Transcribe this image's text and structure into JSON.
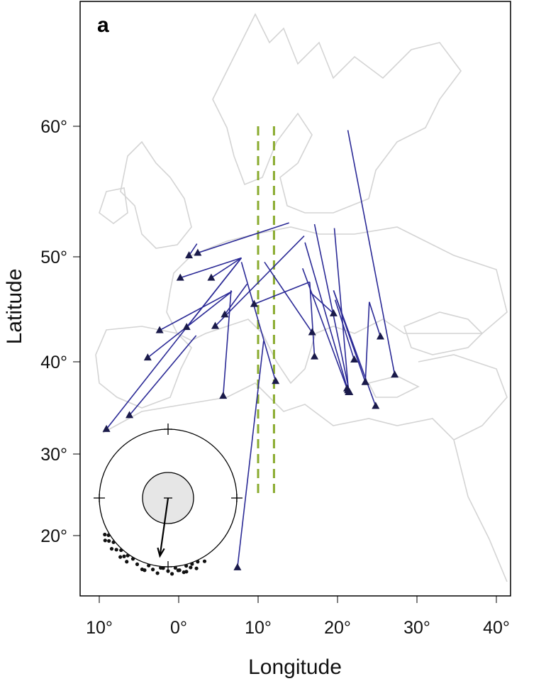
{
  "panel_label": "a",
  "chart_data": {
    "type": "map-tracks",
    "xlabel": "Longitude",
    "ylabel": "Latitude",
    "x_ticks": [
      -10,
      0,
      10,
      20,
      30,
      40
    ],
    "x_tick_labels": [
      "10°",
      "0°",
      "10°",
      "20°",
      "30°",
      "40°"
    ],
    "y_ticks": [
      20,
      30,
      40,
      50,
      60
    ],
    "y_tick_labels": [
      "20°",
      "30°",
      "40°",
      "50°",
      "60°"
    ],
    "xlim": [
      -12,
      42
    ],
    "ylim": [
      14,
      72
    ],
    "grid": false,
    "colors": {
      "tracks": "#2b2a96",
      "reference_lines": "#8aab2f",
      "coastline": "#d4d4d4",
      "inset_disc": "#e6e6e6"
    },
    "reference_lines_longitude": [
      10,
      12
    ],
    "reference_lines_lat_range": [
      24.8,
      60
    ],
    "tracks": [
      {
        "start": [
          13.9,
          52.6
        ],
        "end": [
          2.4,
          50.3
        ]
      },
      {
        "start": [
          2.3,
          51.0
        ],
        "end": [
          1.3,
          50.1
        ]
      },
      {
        "start": [
          7.9,
          49.9
        ],
        "end": [
          0.2,
          48.0
        ]
      },
      {
        "start": [
          7.9,
          49.9
        ],
        "end": [
          4.1,
          48.0
        ]
      },
      {
        "start": [
          7.9,
          49.9
        ],
        "end": [
          1.0,
          43.3
        ]
      },
      {
        "start": [
          7.9,
          49.9
        ],
        "end": [
          -9.1,
          32.7
        ]
      },
      {
        "start": [
          6.7,
          46.7
        ],
        "end": [
          -2.4,
          43.0
        ]
      },
      {
        "start": [
          6.7,
          46.7
        ],
        "end": [
          -3.9,
          40.4
        ]
      },
      {
        "start": [
          6.6,
          46.8
        ],
        "end": [
          5.6,
          36.3
        ]
      },
      {
        "start": [
          2.2,
          42.5
        ],
        "end": [
          -6.2,
          34.2
        ]
      },
      {
        "start": [
          15.8,
          51.6
        ],
        "end": [
          4.6,
          43.4
        ]
      },
      {
        "start": [
          8.6,
          47.4
        ],
        "end": [
          5.8,
          44.5
        ]
      },
      {
        "start": [
          7.9,
          49.5
        ],
        "end": [
          12.2,
          37.9
        ]
      },
      {
        "start": [
          16.5,
          47.6
        ],
        "end": [
          9.5,
          45.5
        ]
      },
      {
        "start": [
          10.8,
          49.5
        ],
        "end": [
          16.8,
          42.8
        ]
      },
      {
        "start": [
          16.5,
          47.6
        ],
        "end": [
          17.1,
          40.5
        ]
      },
      {
        "start": [
          16.6,
          46.6
        ],
        "end": [
          19.5,
          44.6
        ]
      },
      {
        "start": [
          10.7,
          42.0
        ],
        "end": [
          7.4,
          16.1
        ]
      },
      {
        "start": [
          17.1,
          52.5
        ],
        "end": [
          21.5,
          36.7
        ]
      },
      {
        "start": [
          15.9,
          51.1
        ],
        "end": [
          21.3,
          36.9
        ]
      },
      {
        "start": [
          15.6,
          48.9
        ],
        "end": [
          21.2,
          37.1
        ]
      },
      {
        "start": [
          19.6,
          52.2
        ],
        "end": [
          21.4,
          36.7
        ]
      },
      {
        "start": [
          19.5,
          46.8
        ],
        "end": [
          23.5,
          37.8
        ]
      },
      {
        "start": [
          19.5,
          46.8
        ],
        "end": [
          24.8,
          35.2
        ]
      },
      {
        "start": [
          19.7,
          45.9
        ],
        "end": [
          22.1,
          40.2
        ]
      },
      {
        "start": [
          24.0,
          45.7
        ],
        "end": [
          23.5,
          37.8
        ]
      },
      {
        "start": [
          24.0,
          45.7
        ],
        "end": [
          25.4,
          42.4
        ]
      },
      {
        "start": [
          21.3,
          59.7
        ],
        "end": [
          27.2,
          38.6
        ]
      }
    ],
    "inset_circular": {
      "mean_direction_deg": 188,
      "mean_vector_length": 0.85,
      "directions_deg": [
        222,
        225,
        228,
        231,
        234,
        236,
        238,
        240,
        213,
        215,
        217,
        219,
        210,
        205,
        200,
        196,
        192,
        188,
        184,
        180,
        177,
        174,
        171,
        168,
        165,
        162,
        158,
        155,
        150,
        198,
        186,
        172,
        166,
        160
      ]
    }
  }
}
